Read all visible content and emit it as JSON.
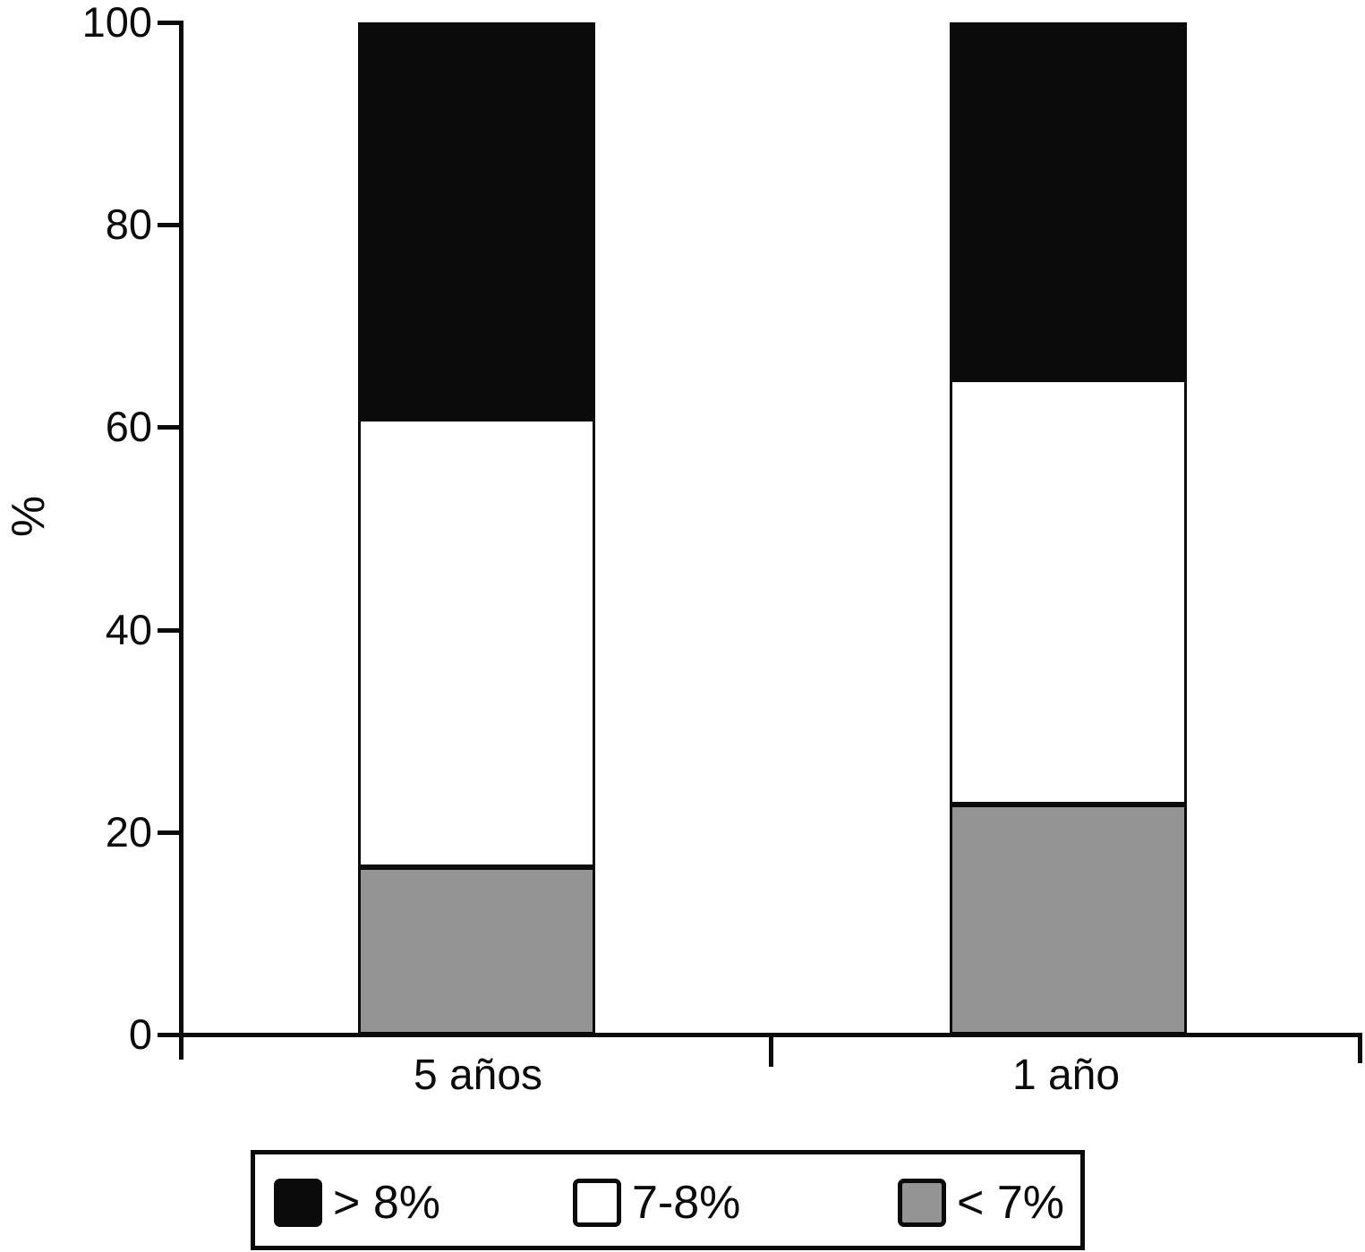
{
  "chart_data": {
    "type": "bar",
    "stacked": true,
    "title": "",
    "ylabel": "%",
    "xlabel": "",
    "ylim": [
      0,
      100
    ],
    "yticks": [
      0,
      20,
      40,
      60,
      80,
      100
    ],
    "grid": false,
    "categories": [
      "5 años",
      "1 año"
    ],
    "series": [
      {
        "name": "< 7%",
        "color": "#949494",
        "values": [
          16.5,
          22.7
        ]
      },
      {
        "name": "7-8%",
        "color": "#ffffff",
        "values": [
          44.3,
          42.0
        ]
      },
      {
        "name": "> 8%",
        "color": "#0b0b0b",
        "values": [
          39.2,
          35.3
        ]
      }
    ],
    "legend": {
      "position": "bottom",
      "entries": [
        {
          "label": "> 8%",
          "color": "#0b0b0b"
        },
        {
          "label": "7-8%",
          "color": "#ffffff"
        },
        {
          "label": "< 7%",
          "color": "#949494"
        }
      ]
    },
    "colors": {
      "axis": "#0b0b0b",
      "text": "#0b0b0b",
      "background": "#ffffff"
    }
  }
}
